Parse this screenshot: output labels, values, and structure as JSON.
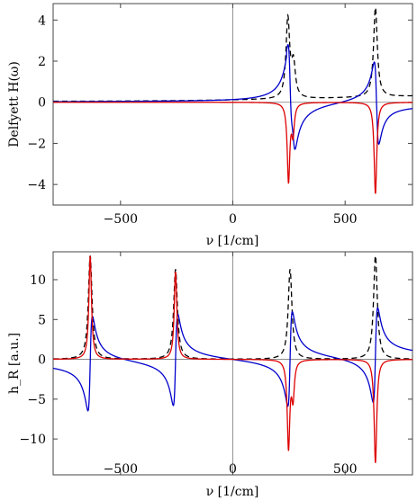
{
  "chart_data": [
    {
      "type": "line",
      "ylabel": "Delfyett H(ω)",
      "xlabel": "ν [1/cm]",
      "xlim": [
        -800,
        800
      ],
      "ylim": [
        -5,
        4.8
      ],
      "xticks": [
        -500,
        0,
        500
      ],
      "xtick_labels": [
        "−500",
        "0",
        "500"
      ],
      "yticks": [
        -4,
        -2,
        0,
        2,
        4
      ],
      "ytick_labels": [
        "−4",
        "−2",
        "0",
        "2",
        "4"
      ],
      "grid": false,
      "series": [
        {
          "color": "#000000",
          "dash": true,
          "peaks": [
            {
              "x": 245,
              "amp": 3.85,
              "w": 10
            },
            {
              "x": 270,
              "amp": 1.6,
              "w": 10
            },
            {
              "x": 635,
              "amp": 4.35,
              "w": 10
            }
          ],
          "baseline_left": 0.05,
          "baseline_right": 0.3
        },
        {
          "color": "#0000cc",
          "kind": "dispersive",
          "peaks": [
            {
              "x": 255,
              "amp": 2.3,
              "w": 10
            },
            {
              "x": 270,
              "amp": 1.0,
              "w": 10
            },
            {
              "x": 640,
              "amp": 2.35,
              "w": 10
            }
          ]
        },
        {
          "color": "#dd0000",
          "peaks": [
            {
              "x": 248,
              "amp": -3.8,
              "w": 7
            },
            {
              "x": 268,
              "amp": -1.4,
              "w": 7
            },
            {
              "x": 635,
              "amp": -4.45,
              "w": 7
            }
          ]
        }
      ]
    },
    {
      "type": "line",
      "ylabel": "h_R [a.u.]",
      "xlabel": "ν [1/cm]",
      "xlim": [
        -800,
        800
      ],
      "ylim": [
        -14.5,
        13.5
      ],
      "xticks": [
        -500,
        0,
        500
      ],
      "xtick_labels": [
        "−500",
        "0",
        "500"
      ],
      "yticks": [
        -10,
        -5,
        0,
        5,
        10
      ],
      "ytick_labels": [
        "−10",
        "−5",
        "0",
        "5",
        "10"
      ],
      "grid": false,
      "series": [
        {
          "color": "#000000",
          "dash": true,
          "peaks": [
            {
              "x": -635,
              "amp": 13.0,
              "w": 10
            },
            {
              "x": -255,
              "amp": 11.3,
              "w": 10
            },
            {
              "x": 255,
              "amp": 11.3,
              "w": 10
            },
            {
              "x": 635,
              "amp": 13.0,
              "w": 10
            }
          ]
        },
        {
          "color": "#0000cc",
          "kind": "dispersive_symmetric",
          "peaks": [
            {
              "x": -635,
              "amp": 6.6,
              "w": 10
            },
            {
              "x": -255,
              "amp": 6.4,
              "w": 10
            },
            {
              "x": 255,
              "amp": 6.6,
              "w": 10
            },
            {
              "x": 635,
              "amp": 6.6,
              "w": 10
            }
          ]
        },
        {
          "color": "#dd0000",
          "peaks": [
            {
              "x": -635,
              "amp": 13.0,
              "w": 7
            },
            {
              "x": -255,
              "amp": 11.0,
              "w": 7
            },
            {
              "x": 248,
              "amp": -11.0,
              "w": 7
            },
            {
              "x": 268,
              "amp": -4.5,
              "w": 7
            },
            {
              "x": 635,
              "amp": -13.0,
              "w": 7
            }
          ]
        }
      ]
    }
  ]
}
